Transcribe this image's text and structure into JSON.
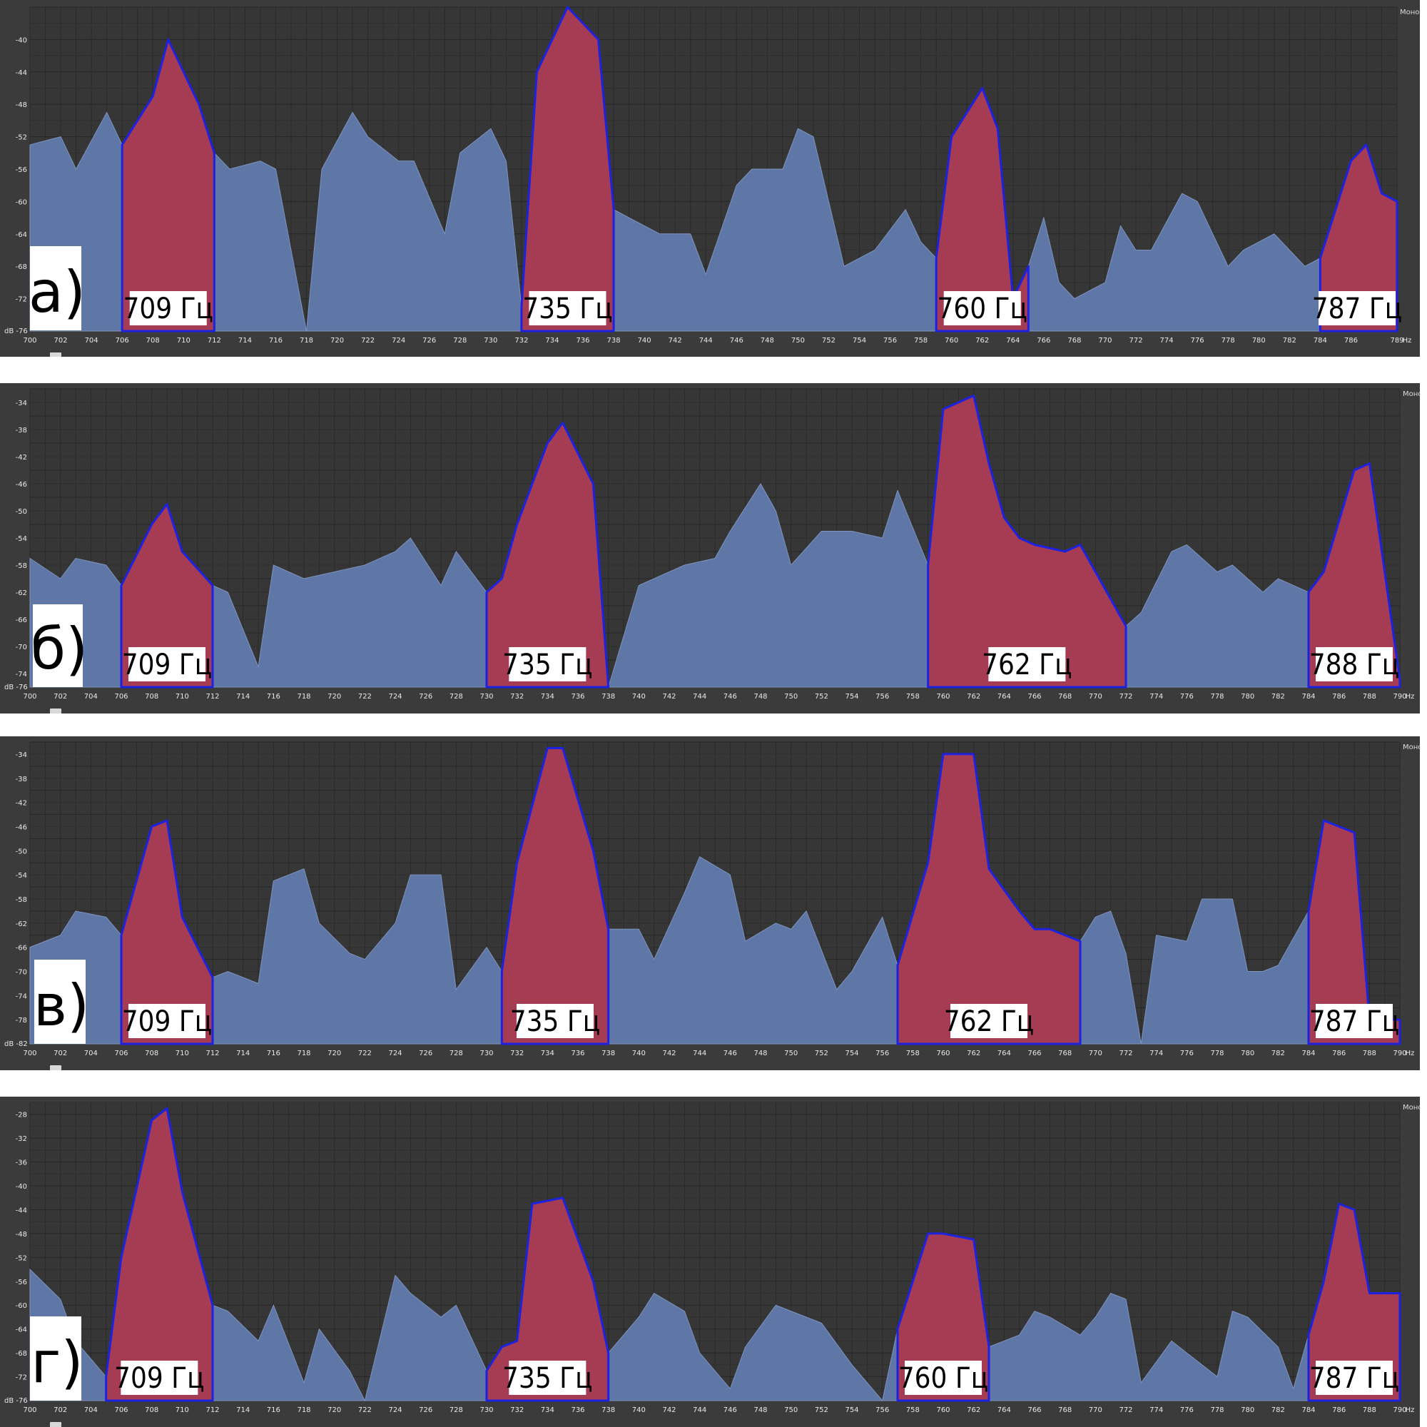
{
  "chart_data": [
    {
      "type": "area",
      "panel_label": "а)",
      "channel_label": "Моно",
      "y_unit": "dB",
      "x_unit": "Hz",
      "xlim": [
        700,
        789
      ],
      "ylim": [
        -76,
        -36
      ],
      "yticks": [
        -40,
        -44,
        -48,
        -52,
        -56,
        -60,
        -64,
        -68,
        -72
      ],
      "xticks": [
        700,
        702,
        704,
        706,
        708,
        710,
        712,
        714,
        716,
        718,
        720,
        722,
        724,
        726,
        728,
        730,
        732,
        734,
        736,
        738,
        740,
        742,
        744,
        746,
        748,
        750,
        752,
        754,
        756,
        758,
        760,
        762,
        764,
        766,
        768,
        770,
        772,
        774,
        776,
        778,
        780,
        782,
        784,
        786,
        789
      ],
      "series": [
        {
          "x": [
            700,
            702,
            703,
            705,
            706,
            708,
            709,
            711,
            712,
            713,
            715,
            716,
            718,
            719,
            721,
            722,
            724,
            725,
            727,
            728,
            730,
            731,
            732,
            733,
            735,
            737,
            738,
            740,
            741,
            743,
            744,
            746,
            747,
            749,
            750,
            751,
            753,
            755,
            757,
            758,
            759,
            760,
            762,
            763,
            764,
            765,
            766,
            767,
            768,
            769,
            770,
            771,
            772,
            773,
            775,
            776,
            778,
            779,
            781,
            782,
            783,
            784,
            785,
            786,
            787,
            788,
            789
          ],
          "y": [
            -53,
            -52,
            -56,
            -49,
            -53,
            -47,
            -40,
            -48,
            -54,
            -56,
            -55,
            -56,
            -76,
            -56,
            -49,
            -52,
            -55,
            -55,
            -64,
            -54,
            -51,
            -55,
            -73,
            -44,
            -36,
            -40,
            -61,
            -63,
            -64,
            -64,
            -69,
            -58,
            -56,
            -56,
            -51,
            -52,
            -68,
            -66,
            -61,
            -65,
            -67,
            -52,
            -46,
            -51,
            -72,
            -68,
            -62,
            -70,
            -72,
            -71,
            -70,
            -63,
            -66,
            -66,
            -59,
            -60,
            -68,
            -66,
            -64,
            -66,
            -68,
            -67,
            -61,
            -55,
            -53,
            -59,
            -60
          ]
        }
      ],
      "peaks": [
        {
          "label": "709 Гц",
          "from": 706,
          "to": 712
        },
        {
          "label": "735 Гц",
          "from": 732,
          "to": 738
        },
        {
          "label": "760 Гц",
          "from": 759,
          "to": 765
        },
        {
          "label": "787 Гц",
          "from": 784,
          "to": 789
        }
      ]
    },
    {
      "type": "area",
      "panel_label": "б)",
      "channel_label": "Моно",
      "y_unit": "dB",
      "x_unit": "Hz",
      "xlim": [
        700,
        790
      ],
      "ylim": [
        -76,
        -32
      ],
      "yticks": [
        -34,
        -38,
        -42,
        -46,
        -50,
        -54,
        -58,
        -62,
        -66,
        -70,
        -74
      ],
      "xticks": [
        700,
        702,
        704,
        706,
        708,
        710,
        712,
        714,
        716,
        718,
        720,
        722,
        724,
        726,
        728,
        730,
        732,
        734,
        736,
        738,
        740,
        742,
        744,
        746,
        748,
        750,
        752,
        754,
        756,
        758,
        760,
        762,
        764,
        766,
        768,
        770,
        772,
        774,
        776,
        778,
        780,
        782,
        784,
        786,
        788,
        790
      ],
      "series": [
        {
          "x": [
            700,
            702,
            703,
            705,
            706,
            708,
            709,
            710,
            712,
            713,
            715,
            716,
            718,
            720,
            722,
            724,
            725,
            727,
            728,
            730,
            731,
            732,
            734,
            735,
            737,
            738,
            740,
            742,
            743,
            745,
            746,
            748,
            749,
            750,
            752,
            754,
            756,
            757,
            759,
            760,
            762,
            763,
            764,
            765,
            766,
            768,
            769,
            771,
            772,
            773,
            775,
            776,
            778,
            779,
            781,
            782,
            783,
            784,
            785,
            787,
            788,
            790
          ],
          "y": [
            -57,
            -60,
            -57,
            -58,
            -61,
            -52,
            -49,
            -56,
            -61,
            -62,
            -73,
            -58,
            -60,
            -59,
            -58,
            -56,
            -54,
            -61,
            -56,
            -62,
            -60,
            -52,
            -40,
            -37,
            -46,
            -76,
            -61,
            -59,
            -58,
            -57,
            -53,
            -46,
            -50,
            -58,
            -53,
            -53,
            -54,
            -47,
            -58,
            -35,
            -33,
            -43,
            -51,
            -54,
            -55,
            -56,
            -55,
            -63,
            -67,
            -65,
            -56,
            -55,
            -59,
            -58,
            -62,
            -60,
            -61,
            -62,
            -59,
            -44,
            -43,
            -75
          ]
        }
      ],
      "peaks": [
        {
          "label": "709 Гц",
          "from": 706,
          "to": 712
        },
        {
          "label": "735 Гц",
          "from": 730,
          "to": 738
        },
        {
          "label": "762 Гц",
          "from": 759,
          "to": 772
        },
        {
          "label": "788 Гц",
          "from": 784,
          "to": 790
        }
      ]
    },
    {
      "type": "area",
      "panel_label": "в)",
      "channel_label": "Моно",
      "y_unit": "dB",
      "x_unit": "Hz",
      "xlim": [
        700,
        790
      ],
      "ylim": [
        -82,
        -32
      ],
      "yticks": [
        -34,
        -38,
        -42,
        -46,
        -50,
        -54,
        -58,
        -62,
        -66,
        -70,
        -74,
        -78
      ],
      "xticks": [
        700,
        702,
        704,
        706,
        708,
        710,
        712,
        714,
        716,
        718,
        720,
        722,
        724,
        726,
        728,
        730,
        732,
        734,
        736,
        738,
        740,
        742,
        744,
        746,
        748,
        750,
        752,
        754,
        756,
        758,
        760,
        762,
        764,
        766,
        768,
        770,
        772,
        774,
        776,
        778,
        780,
        782,
        784,
        786,
        788,
        790
      ],
      "series": [
        {
          "x": [
            700,
            702,
            703,
            705,
            706,
            708,
            709,
            710,
            712,
            713,
            715,
            716,
            718,
            719,
            721,
            722,
            724,
            725,
            727,
            728,
            730,
            731,
            732,
            734,
            735,
            737,
            738,
            740,
            741,
            743,
            744,
            746,
            747,
            749,
            750,
            751,
            753,
            754,
            756,
            757,
            759,
            760,
            761,
            762,
            763,
            765,
            766,
            767,
            769,
            770,
            771,
            772,
            773,
            774,
            776,
            777,
            779,
            780,
            781,
            782,
            784,
            785,
            787,
            788,
            790
          ],
          "y": [
            -66,
            -64,
            -60,
            -61,
            -64,
            -46,
            -45,
            -61,
            -71,
            -70,
            -72,
            -55,
            -53,
            -62,
            -67,
            -68,
            -62,
            -54,
            -54,
            -73,
            -66,
            -70,
            -52,
            -33,
            -33,
            -50,
            -63,
            -63,
            -68,
            -57,
            -51,
            -54,
            -65,
            -62,
            -63,
            -60,
            -73,
            -70,
            -61,
            -69,
            -52,
            -34,
            -34,
            -34,
            -53,
            -60,
            -63,
            -63,
            -65,
            -61,
            -60,
            -67,
            -82,
            -64,
            -65,
            -58,
            -58,
            -70,
            -70,
            -69,
            -60,
            -45,
            -47,
            -78,
            -78
          ]
        }
      ],
      "peaks": [
        {
          "label": "709 Гц",
          "from": 706,
          "to": 712
        },
        {
          "label": "735 Гц",
          "from": 731,
          "to": 738
        },
        {
          "label": "762 Гц",
          "from": 757,
          "to": 769
        },
        {
          "label": "787 Гц",
          "from": 784,
          "to": 790
        }
      ]
    },
    {
      "type": "area",
      "panel_label": "г)",
      "channel_label": "Моно",
      "y_unit": "dB",
      "x_unit": "Hz",
      "xlim": [
        700,
        790
      ],
      "ylim": [
        -76,
        -26
      ],
      "yticks": [
        -28,
        -32,
        -36,
        -40,
        -44,
        -48,
        -52,
        -56,
        -60,
        -64,
        -68,
        -72
      ],
      "xticks": [
        700,
        702,
        704,
        706,
        708,
        710,
        712,
        714,
        716,
        718,
        720,
        722,
        724,
        726,
        728,
        730,
        732,
        734,
        736,
        738,
        740,
        742,
        744,
        746,
        748,
        750,
        752,
        754,
        756,
        758,
        760,
        762,
        764,
        766,
        768,
        770,
        772,
        774,
        776,
        778,
        780,
        782,
        784,
        786,
        788,
        790
      ],
      "series": [
        {
          "x": [
            700,
            702,
            703,
            705,
            706,
            708,
            709,
            710,
            712,
            713,
            715,
            716,
            718,
            719,
            721,
            722,
            724,
            725,
            727,
            728,
            730,
            731,
            732,
            733,
            735,
            737,
            738,
            740,
            741,
            743,
            744,
            746,
            747,
            749,
            750,
            752,
            754,
            756,
            757,
            759,
            760,
            762,
            763,
            765,
            766,
            767,
            769,
            770,
            771,
            772,
            773,
            775,
            776,
            778,
            779,
            780,
            782,
            783,
            785,
            786,
            787,
            788,
            790
          ],
          "y": [
            -54,
            -59,
            -66,
            -72,
            -52,
            -29,
            -27,
            -41,
            -60,
            -61,
            -66,
            -60,
            -73,
            -64,
            -71,
            -76,
            -55,
            -58,
            -62,
            -60,
            -71,
            -67,
            -66,
            -43,
            -42,
            -56,
            -68,
            -62,
            -58,
            -61,
            -68,
            -74,
            -67,
            -60,
            -61,
            -63,
            -70,
            -76,
            -64,
            -48,
            -48,
            -49,
            -67,
            -65,
            -61,
            -62,
            -65,
            -62,
            -58,
            -59,
            -73,
            -66,
            -68,
            -72,
            -61,
            -62,
            -67,
            -74,
            -56,
            -43,
            -44,
            -58,
            -58
          ]
        }
      ],
      "peaks": [
        {
          "label": "709 Гц",
          "from": 705,
          "to": 712
        },
        {
          "label": "735 Гц",
          "from": 730,
          "to": 738
        },
        {
          "label": "760 Гц",
          "from": 757,
          "to": 763
        },
        {
          "label": "787 Гц",
          "from": 784,
          "to": 790
        }
      ]
    }
  ]
}
